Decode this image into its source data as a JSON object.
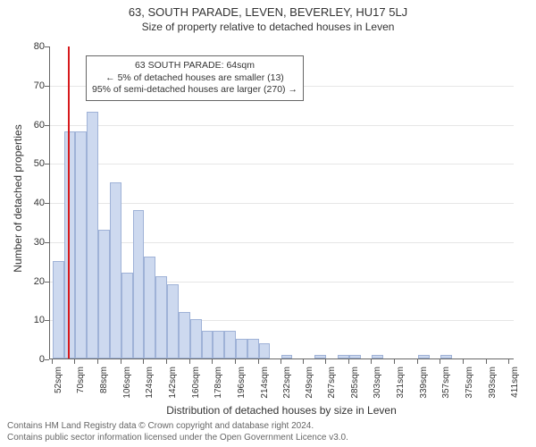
{
  "header": {
    "address": "63, SOUTH PARADE, LEVEN, BEVERLEY, HU17 5LJ",
    "subtitle": "Size of property relative to detached houses in Leven"
  },
  "chart": {
    "type": "histogram",
    "ylabel": "Number of detached properties",
    "xlabel": "Distribution of detached houses by size in Leven",
    "ylim": [
      0,
      80
    ],
    "ytick_step": 10,
    "background_color": "#ffffff",
    "grid_color": "#e6e6e6",
    "axis_color": "#666666",
    "bar_fill": "#cdd9ef",
    "bar_stroke": "#9fb2d7",
    "refline_color": "#d7191c",
    "refline_x": 64,
    "annotation_border": "#666666",
    "annotation_bg": "#ffffff",
    "label_fontsize": 12,
    "tick_fontsize": 11,
    "xtick_fontsize": 10,
    "annotation_fontsize": 10.5,
    "bars": [
      {
        "x": 52,
        "w": 9,
        "h": 25
      },
      {
        "x": 61,
        "w": 9,
        "h": 58
      },
      {
        "x": 70,
        "w": 9,
        "h": 58
      },
      {
        "x": 79,
        "w": 9,
        "h": 63
      },
      {
        "x": 88,
        "w": 9,
        "h": 33
      },
      {
        "x": 97,
        "w": 9,
        "h": 45
      },
      {
        "x": 106,
        "w": 9,
        "h": 22
      },
      {
        "x": 115,
        "w": 9,
        "h": 38
      },
      {
        "x": 124,
        "w": 9,
        "h": 26
      },
      {
        "x": 133,
        "w": 9,
        "h": 21
      },
      {
        "x": 142,
        "w": 9,
        "h": 19
      },
      {
        "x": 151,
        "w": 9,
        "h": 12
      },
      {
        "x": 160,
        "w": 9,
        "h": 10
      },
      {
        "x": 169,
        "w": 9,
        "h": 7
      },
      {
        "x": 178,
        "w": 9,
        "h": 7
      },
      {
        "x": 187,
        "w": 9,
        "h": 7
      },
      {
        "x": 196,
        "w": 9,
        "h": 5
      },
      {
        "x": 205,
        "w": 9,
        "h": 5
      },
      {
        "x": 214,
        "w": 9,
        "h": 4
      },
      {
        "x": 232,
        "w": 8,
        "h": 1
      },
      {
        "x": 249,
        "w": 9,
        "h": 0
      },
      {
        "x": 258,
        "w": 9,
        "h": 1
      },
      {
        "x": 267,
        "w": 9,
        "h": 0
      },
      {
        "x": 276,
        "w": 9,
        "h": 1
      },
      {
        "x": 285,
        "w": 9,
        "h": 1
      },
      {
        "x": 294,
        "w": 9,
        "h": 0
      },
      {
        "x": 303,
        "w": 9,
        "h": 1
      },
      {
        "x": 339,
        "w": 9,
        "h": 1
      },
      {
        "x": 357,
        "w": 9,
        "h": 1
      }
    ],
    "xticks": [
      52,
      70,
      88,
      106,
      124,
      142,
      160,
      178,
      196,
      214,
      232,
      249,
      267,
      285,
      303,
      321,
      339,
      357,
      375,
      393,
      411
    ],
    "xtick_suffix": "sqm",
    "x_min": 50,
    "x_max": 415,
    "annotation": {
      "line1": "63 SOUTH PARADE: 64sqm",
      "line2": "← 5% of detached houses are smaller (13)",
      "line3": "95% of semi-detached houses are larger (270) →"
    }
  },
  "footer": {
    "line1": "Contains HM Land Registry data © Crown copyright and database right 2024.",
    "line2": "Contains public sector information licensed under the Open Government Licence v3.0."
  }
}
